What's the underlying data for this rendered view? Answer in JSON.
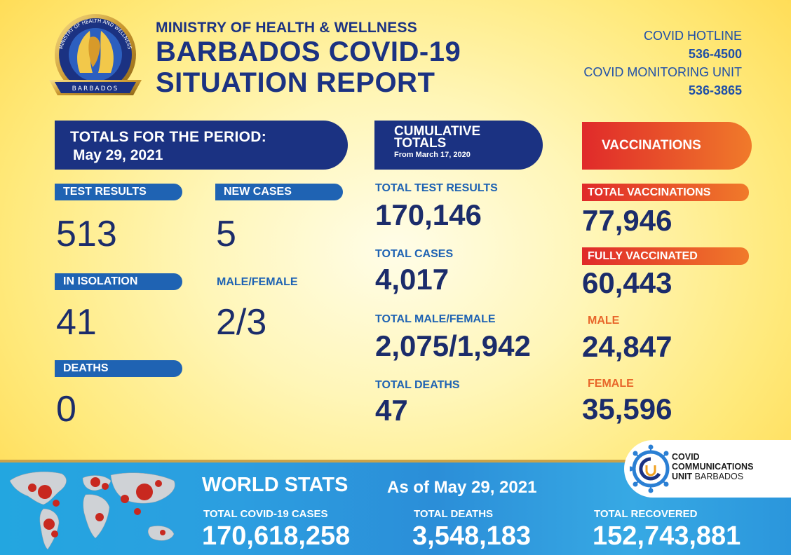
{
  "header": {
    "ministry": "MINISTRY OF HEALTH & WELLNESS",
    "title_line1": "BARBADOS COVID-19",
    "title_line2": "SITUATION REPORT",
    "seal_text": "MINISTRY OF HEALTH AND WELLNESS",
    "seal_country": "BARBADOS"
  },
  "contacts": {
    "hotline_label": "COVID HOTLINE",
    "hotline_number": "536-4500",
    "monitoring_label": "COVID MONITORING UNIT",
    "monitoring_number": "536-3865"
  },
  "period": {
    "banner_line1": "TOTALS FOR THE PERIOD:",
    "banner_line2": "May 29, 2021",
    "test_results_label": "TEST RESULTS",
    "test_results": "513",
    "new_cases_label": "NEW CASES",
    "new_cases": "5",
    "isolation_label": "IN ISOLATION",
    "isolation": "41",
    "male_female_label": "MALE/FEMALE",
    "male_female": "2/3",
    "deaths_label": "DEATHS",
    "deaths": "0"
  },
  "cumulative": {
    "banner_line1": "CUMULATIVE",
    "banner_line2": "TOTALS",
    "banner_line3": "From March 17, 2020",
    "tests_label": "TOTAL TEST RESULTS",
    "tests": "170,146",
    "cases_label": "TOTAL CASES",
    "cases": "4,017",
    "male_female_label": "TOTAL MALE/FEMALE",
    "male_female": "2,075/1,942",
    "deaths_label": "TOTAL DEATHS",
    "deaths": "47"
  },
  "vaccinations": {
    "banner": "VACCINATIONS",
    "total_label": "TOTAL VACCINATIONS",
    "total": "77,946",
    "fully_label": "FULLY VACCINATED",
    "fully": "60,443",
    "male_label": "MALE",
    "male": "24,847",
    "female_label": "FEMALE",
    "female": "35,596"
  },
  "world": {
    "title": "WORLD STATS",
    "date": "As of May 29, 2021",
    "cases_label": "TOTAL COVID-19 CASES",
    "cases": "170,618,258",
    "deaths_label": "TOTAL DEATHS",
    "deaths": "3,548,183",
    "recovered_label": "TOTAL RECOVERED",
    "recovered": "152,743,881"
  },
  "ccu": {
    "line1": "COVID",
    "line2": "COMMUNICATIONS",
    "line3_bold": "UNIT",
    "line3_light": "BARBADOS"
  },
  "colors": {
    "navy": "#1b3282",
    "blue_label": "#1f63b3",
    "orange": "#f07a2a",
    "red": "#e02a2a"
  }
}
